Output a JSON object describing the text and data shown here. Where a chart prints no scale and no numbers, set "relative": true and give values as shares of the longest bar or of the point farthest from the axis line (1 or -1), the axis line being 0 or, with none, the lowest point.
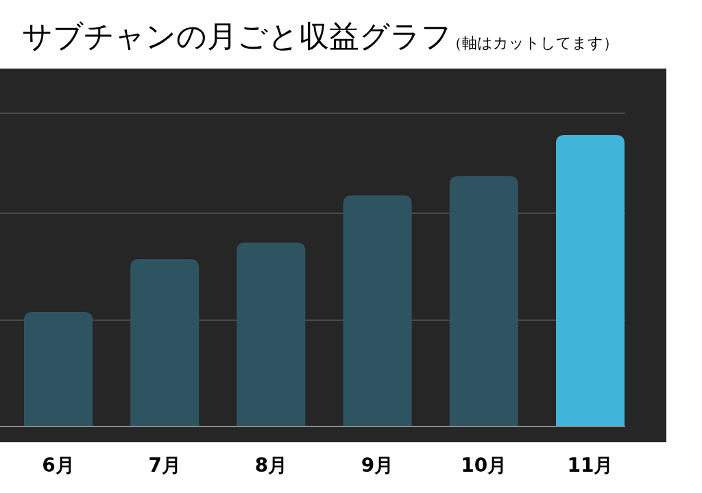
{
  "chart_data": {
    "type": "bar",
    "title": "サブチャンの月ごと収益グラフ",
    "subtitle": "（軸はカットしてます）",
    "categories": [
      "6月",
      "7月",
      "8月",
      "9月",
      "10月",
      "11月"
    ],
    "values": [
      0.393,
      0.574,
      0.631,
      0.793,
      0.859,
      1
    ],
    "colors": [
      "#2f5461",
      "#2f5461",
      "#2f5461",
      "#2f5461",
      "#2f5461",
      "#41b4d9"
    ],
    "relative": true,
    "ref_lines": [
      {
        "axis": "y",
        "value": 0.365,
        "color": "#4a4a4a"
      },
      {
        "axis": "y",
        "value": 0.732,
        "color": "#4a4a4a"
      },
      {
        "axis": "y",
        "value": 1.075,
        "color": "#4a4a4a"
      }
    ]
  }
}
